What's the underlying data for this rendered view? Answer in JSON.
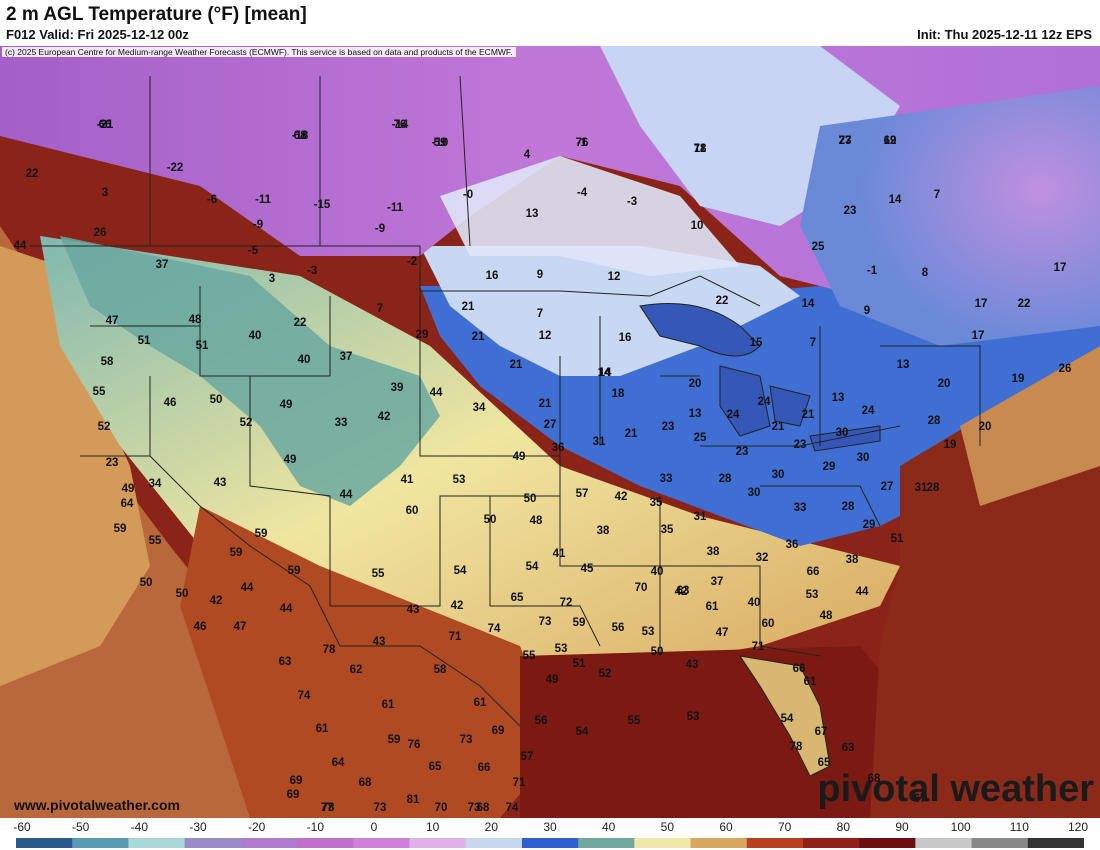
{
  "header": {
    "title": "2 m AGL Temperature (°F) [mean]",
    "valid": "F012 Valid: Fri 2025-12-12 00z",
    "init": "Init: Thu 2025-12-11 12z EPS",
    "credit": "(c) 2025 European Centre for Medium-range Weather Forecasts (ECMWF). This service is based on data and products of the ECMWF."
  },
  "footer": {
    "url": "www.pivotalweather.com",
    "brand": "pivotal weather"
  },
  "colorbar": {
    "ticks": [
      "-60",
      "-50",
      "-40",
      "-30",
      "-20",
      "-10",
      "0",
      "10",
      "20",
      "30",
      "40",
      "50",
      "60",
      "70",
      "80",
      "90",
      "100",
      "110",
      "120"
    ],
    "colors": [
      "#2a5a8c",
      "#5a9ab4",
      "#a8d8d8",
      "#9a8ac8",
      "#b07ad0",
      "#c070c8",
      "#d080d8",
      "#e0b0e8",
      "#c8d8f0",
      "#3060d0",
      "#70a8a0",
      "#f0e8a8",
      "#d8a860",
      "#b84020",
      "#902018",
      "#6a1010",
      "#c8c8c8",
      "#888888",
      "#333333"
    ]
  },
  "map_values": [
    "-21",
    "-14",
    "-18",
    "-10",
    "-1",
    "11",
    "19",
    "23",
    "22",
    "-22",
    "3",
    "-6",
    "-11",
    "-15",
    "-11",
    "-0",
    "4",
    "-4",
    "-3",
    "14",
    "7",
    "-9",
    "-9",
    "13",
    "10",
    "23",
    "26",
    "-5",
    "-3",
    "-2",
    "25",
    "37",
    "3",
    "44",
    "16",
    "9",
    "12",
    "-1",
    "8",
    "17",
    "47",
    "48",
    "7",
    "21",
    "7",
    "22",
    "14",
    "9",
    "17",
    "22",
    "51",
    "22",
    "29",
    "21",
    "12",
    "16",
    "7",
    "17",
    "26",
    "58",
    "51",
    "40",
    "40",
    "37",
    "21",
    "15",
    "13",
    "14",
    "55",
    "46",
    "50",
    "49",
    "39",
    "44",
    "34",
    "14",
    "18",
    "20",
    "24",
    "13",
    "20",
    "19",
    "24",
    "52",
    "52",
    "33",
    "42",
    "21",
    "13",
    "24",
    "21",
    "21",
    "27",
    "28",
    "20",
    "23",
    "64",
    "49",
    "49",
    "36",
    "31",
    "23",
    "21",
    "25",
    "23",
    "30",
    "19",
    "23",
    "30",
    "28",
    "34",
    "43",
    "41",
    "53",
    "57",
    "42",
    "35",
    "33",
    "28",
    "30",
    "29",
    "27",
    "31",
    "28",
    "49",
    "44",
    "60",
    "50",
    "48",
    "38",
    "35",
    "31",
    "30",
    "33",
    "29",
    "59",
    "59",
    "54",
    "50",
    "41",
    "38",
    "32",
    "36",
    "38",
    "51",
    "43",
    "55",
    "59",
    "55",
    "54",
    "45",
    "40",
    "42",
    "37",
    "40",
    "66",
    "44",
    "59",
    "50",
    "50",
    "42",
    "44",
    "43",
    "42",
    "65",
    "72",
    "70",
    "63",
    "61",
    "60",
    "53",
    "48",
    "46",
    "44",
    "47",
    "43",
    "78",
    "71",
    "74",
    "73",
    "59",
    "56",
    "53",
    "50",
    "47",
    "71",
    "66",
    "61",
    "63",
    "62",
    "58",
    "55",
    "53",
    "51",
    "49",
    "52",
    "74",
    "61",
    "61",
    "56",
    "54",
    "55",
    "53",
    "54",
    "76",
    "61",
    "64",
    "59",
    "73",
    "69",
    "67",
    "57",
    "66",
    "78",
    "65",
    "63",
    "69",
    "68",
    "65",
    "71",
    "68",
    "67",
    "78",
    "81",
    "70",
    "68",
    "73",
    "69",
    "74",
    "73",
    "77",
    "66",
    "76",
    "68",
    "59",
    "76",
    "78",
    "62",
    "77"
  ],
  "legend_note": ""
}
